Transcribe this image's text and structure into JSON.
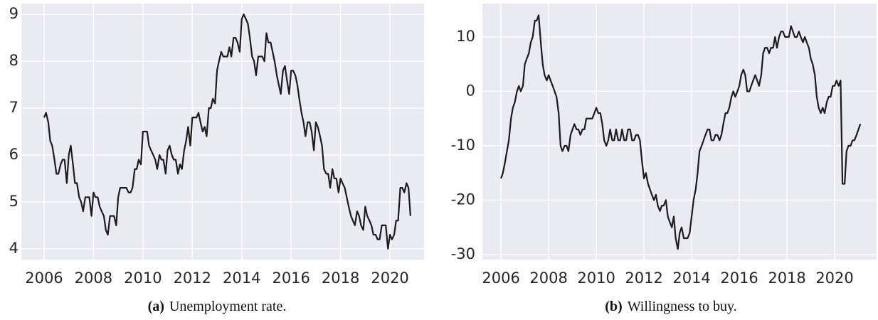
{
  "chart_data": [
    {
      "type": "line",
      "caption_label": "(a)",
      "caption": "Unemployment rate.",
      "color": "#1c1c1c",
      "grid": true,
      "xlim": [
        2005.08,
        2021.38
      ],
      "ylim": [
        3.77,
        9.23
      ],
      "xticks": [
        2006,
        2008,
        2010,
        2012,
        2014,
        2016,
        2018,
        2020
      ],
      "yticks": [
        4,
        5,
        6,
        7,
        8,
        9
      ],
      "x": [
        2006.0,
        2006.08,
        2006.17,
        2006.25,
        2006.33,
        2006.42,
        2006.5,
        2006.58,
        2006.67,
        2006.75,
        2006.83,
        2006.92,
        2007.0,
        2007.08,
        2007.17,
        2007.25,
        2007.33,
        2007.42,
        2007.5,
        2007.58,
        2007.67,
        2007.75,
        2007.83,
        2007.92,
        2008.0,
        2008.08,
        2008.17,
        2008.25,
        2008.33,
        2008.42,
        2008.5,
        2008.58,
        2008.67,
        2008.75,
        2008.83,
        2008.92,
        2009.0,
        2009.08,
        2009.17,
        2009.25,
        2009.33,
        2009.42,
        2009.5,
        2009.58,
        2009.67,
        2009.75,
        2009.83,
        2009.92,
        2010.0,
        2010.08,
        2010.17,
        2010.25,
        2010.33,
        2010.42,
        2010.5,
        2010.58,
        2010.67,
        2010.75,
        2010.83,
        2010.92,
        2011.0,
        2011.08,
        2011.17,
        2011.25,
        2011.33,
        2011.42,
        2011.5,
        2011.58,
        2011.67,
        2011.75,
        2011.83,
        2011.92,
        2012.0,
        2012.08,
        2012.17,
        2012.25,
        2012.33,
        2012.42,
        2012.5,
        2012.58,
        2012.67,
        2012.75,
        2012.83,
        2012.92,
        2013.0,
        2013.08,
        2013.17,
        2013.25,
        2013.33,
        2013.42,
        2013.5,
        2013.58,
        2013.67,
        2013.75,
        2013.83,
        2013.92,
        2014.0,
        2014.08,
        2014.17,
        2014.25,
        2014.33,
        2014.42,
        2014.5,
        2014.58,
        2014.67,
        2014.75,
        2014.83,
        2014.92,
        2015.0,
        2015.08,
        2015.17,
        2015.25,
        2015.33,
        2015.42,
        2015.5,
        2015.58,
        2015.67,
        2015.75,
        2015.83,
        2015.92,
        2016.0,
        2016.08,
        2016.17,
        2016.25,
        2016.33,
        2016.42,
        2016.5,
        2016.58,
        2016.67,
        2016.75,
        2016.83,
        2016.92,
        2017.0,
        2017.08,
        2017.17,
        2017.25,
        2017.33,
        2017.42,
        2017.5,
        2017.58,
        2017.67,
        2017.75,
        2017.83,
        2017.92,
        2018.0,
        2018.08,
        2018.17,
        2018.25,
        2018.33,
        2018.42,
        2018.5,
        2018.58,
        2018.67,
        2018.75,
        2018.83,
        2018.92,
        2019.0,
        2019.08,
        2019.17,
        2019.25,
        2019.33,
        2019.42,
        2019.5,
        2019.58,
        2019.67,
        2019.75,
        2019.83,
        2019.92,
        2020.0,
        2020.08,
        2020.17,
        2020.25,
        2020.33,
        2020.42,
        2020.5,
        2020.58,
        2020.67,
        2020.75,
        2020.83
      ],
      "values": [
        6.8,
        6.9,
        6.7,
        6.3,
        6.2,
        5.9,
        5.6,
        5.6,
        5.8,
        5.9,
        5.9,
        5.4,
        6.0,
        6.2,
        5.8,
        5.4,
        5.4,
        5.1,
        5.0,
        4.8,
        5.1,
        5.1,
        5.1,
        4.7,
        5.2,
        5.1,
        5.1,
        4.9,
        4.8,
        4.7,
        4.4,
        4.3,
        4.7,
        4.7,
        4.7,
        4.5,
        5.1,
        5.3,
        5.3,
        5.3,
        5.3,
        5.2,
        5.2,
        5.3,
        5.7,
        5.7,
        5.9,
        5.8,
        6.5,
        6.5,
        6.5,
        6.2,
        6.1,
        6.0,
        5.9,
        5.7,
        6.0,
        5.9,
        5.9,
        5.6,
        6.1,
        6.2,
        6.0,
        5.9,
        5.9,
        5.6,
        5.8,
        5.7,
        6.1,
        6.3,
        6.6,
        6.2,
        6.8,
        6.8,
        6.8,
        6.9,
        6.7,
        6.5,
        6.6,
        6.4,
        7.0,
        7.0,
        7.2,
        7.1,
        7.8,
        8.0,
        8.2,
        8.1,
        8.1,
        8.1,
        8.3,
        8.1,
        8.5,
        8.5,
        8.4,
        8.2,
        8.9,
        9.0,
        8.9,
        8.8,
        8.5,
        8.1,
        8.0,
        7.7,
        8.1,
        8.1,
        8.1,
        8.0,
        8.6,
        8.4,
        8.4,
        8.2,
        8.0,
        7.7,
        7.5,
        7.3,
        7.8,
        7.9,
        7.6,
        7.3,
        7.8,
        7.8,
        7.7,
        7.5,
        7.2,
        6.9,
        6.7,
        6.4,
        6.7,
        6.7,
        6.5,
        6.1,
        6.7,
        6.6,
        6.4,
        6.2,
        5.7,
        5.6,
        5.6,
        5.3,
        5.7,
        5.5,
        5.5,
        5.2,
        5.5,
        5.4,
        5.3,
        5.1,
        4.9,
        4.7,
        4.6,
        4.5,
        4.8,
        4.7,
        4.5,
        4.4,
        4.9,
        4.7,
        4.6,
        4.5,
        4.3,
        4.3,
        4.2,
        4.2,
        4.5,
        4.5,
        4.5,
        4.0,
        4.3,
        4.2,
        4.3,
        4.6,
        4.6,
        5.3,
        5.3,
        5.2,
        5.4,
        5.3,
        4.7
      ]
    },
    {
      "type": "line",
      "caption_label": "(b)",
      "caption": "Willingness to buy.",
      "color": "#1c1c1c",
      "grid": true,
      "xlim": [
        2005.22,
        2021.76
      ],
      "ylim": [
        -30.92,
        16.14
      ],
      "xticks": [
        2006,
        2008,
        2010,
        2012,
        2014,
        2016,
        2018,
        2020
      ],
      "yticks": [
        -30,
        -20,
        -10,
        0,
        10
      ],
      "x": [
        2006.0,
        2006.08,
        2006.17,
        2006.25,
        2006.33,
        2006.42,
        2006.5,
        2006.58,
        2006.67,
        2006.75,
        2006.83,
        2006.92,
        2007.0,
        2007.08,
        2007.17,
        2007.25,
        2007.33,
        2007.42,
        2007.5,
        2007.58,
        2007.67,
        2007.75,
        2007.83,
        2007.92,
        2008.0,
        2008.08,
        2008.17,
        2008.25,
        2008.33,
        2008.42,
        2008.5,
        2008.58,
        2008.67,
        2008.75,
        2008.83,
        2008.92,
        2009.0,
        2009.08,
        2009.17,
        2009.25,
        2009.33,
        2009.42,
        2009.5,
        2009.58,
        2009.67,
        2009.75,
        2009.83,
        2009.92,
        2010.0,
        2010.08,
        2010.17,
        2010.25,
        2010.33,
        2010.42,
        2010.5,
        2010.58,
        2010.67,
        2010.75,
        2010.83,
        2010.92,
        2011.0,
        2011.08,
        2011.17,
        2011.25,
        2011.33,
        2011.42,
        2011.5,
        2011.58,
        2011.67,
        2011.75,
        2011.83,
        2011.92,
        2012.0,
        2012.08,
        2012.17,
        2012.25,
        2012.33,
        2012.42,
        2012.5,
        2012.58,
        2012.67,
        2012.75,
        2012.83,
        2012.92,
        2013.0,
        2013.08,
        2013.17,
        2013.25,
        2013.33,
        2013.42,
        2013.5,
        2013.58,
        2013.67,
        2013.75,
        2013.83,
        2013.92,
        2014.0,
        2014.08,
        2014.17,
        2014.25,
        2014.33,
        2014.42,
        2014.5,
        2014.58,
        2014.67,
        2014.75,
        2014.83,
        2014.92,
        2015.0,
        2015.08,
        2015.17,
        2015.25,
        2015.33,
        2015.42,
        2015.5,
        2015.58,
        2015.67,
        2015.75,
        2015.83,
        2015.92,
        2016.0,
        2016.08,
        2016.17,
        2016.25,
        2016.33,
        2016.42,
        2016.5,
        2016.58,
        2016.67,
        2016.75,
        2016.83,
        2016.92,
        2017.0,
        2017.08,
        2017.17,
        2017.25,
        2017.33,
        2017.42,
        2017.5,
        2017.58,
        2017.67,
        2017.75,
        2017.83,
        2017.92,
        2018.0,
        2018.08,
        2018.17,
        2018.25,
        2018.33,
        2018.42,
        2018.5,
        2018.58,
        2018.67,
        2018.75,
        2018.83,
        2018.92,
        2019.0,
        2019.08,
        2019.17,
        2019.25,
        2019.33,
        2019.42,
        2019.5,
        2019.58,
        2019.67,
        2019.75,
        2019.83,
        2019.92,
        2020.0,
        2020.08,
        2020.17,
        2020.25,
        2020.33,
        2020.42,
        2020.5,
        2020.58,
        2020.67,
        2020.75,
        2020.83,
        2020.92,
        2021.0,
        2021.08
      ],
      "values": [
        -16,
        -15,
        -13,
        -11,
        -9,
        -5,
        -3,
        -2,
        0,
        1,
        0,
        1,
        5,
        6,
        7,
        9,
        10,
        13,
        13,
        14,
        9,
        5,
        3,
        2,
        3,
        2,
        1,
        0,
        -1,
        -4,
        -10,
        -11,
        -10,
        -10,
        -11,
        -8,
        -7,
        -6,
        -7,
        -7,
        -8,
        -7,
        -7,
        -5,
        -5,
        -5,
        -5,
        -4,
        -3,
        -4,
        -4,
        -6,
        -9,
        -10,
        -9,
        -7,
        -9,
        -9,
        -7,
        -9,
        -9,
        -7,
        -9,
        -9,
        -7,
        -7,
        -9,
        -9,
        -8,
        -8,
        -9,
        -13,
        -16,
        -15,
        -17,
        -18,
        -19,
        -20,
        -19,
        -21,
        -22,
        -21,
        -21,
        -20,
        -23,
        -24,
        -25,
        -23,
        -27,
        -29,
        -26,
        -25,
        -27,
        -27,
        -27,
        -26,
        -23,
        -20,
        -18,
        -15,
        -11,
        -10,
        -9,
        -8,
        -7,
        -7,
        -9,
        -9,
        -8,
        -8,
        -9,
        -8,
        -6,
        -4,
        -4,
        -3,
        -1,
        0,
        -1,
        0,
        1,
        3,
        4,
        3,
        0,
        0,
        1,
        2,
        3,
        2,
        1,
        3,
        7,
        8,
        8,
        7,
        8,
        8,
        10,
        8,
        10,
        11,
        11,
        10,
        10,
        10,
        12,
        11,
        10,
        10,
        11,
        10,
        9,
        10,
        9,
        8,
        6,
        5,
        3,
        -1,
        -3,
        -4,
        -3,
        -4,
        -2,
        -1,
        -1,
        1,
        1,
        2,
        1,
        2,
        -17,
        -17,
        -11,
        -10,
        -10,
        -9,
        -9,
        -8,
        -7,
        -6
      ]
    }
  ]
}
